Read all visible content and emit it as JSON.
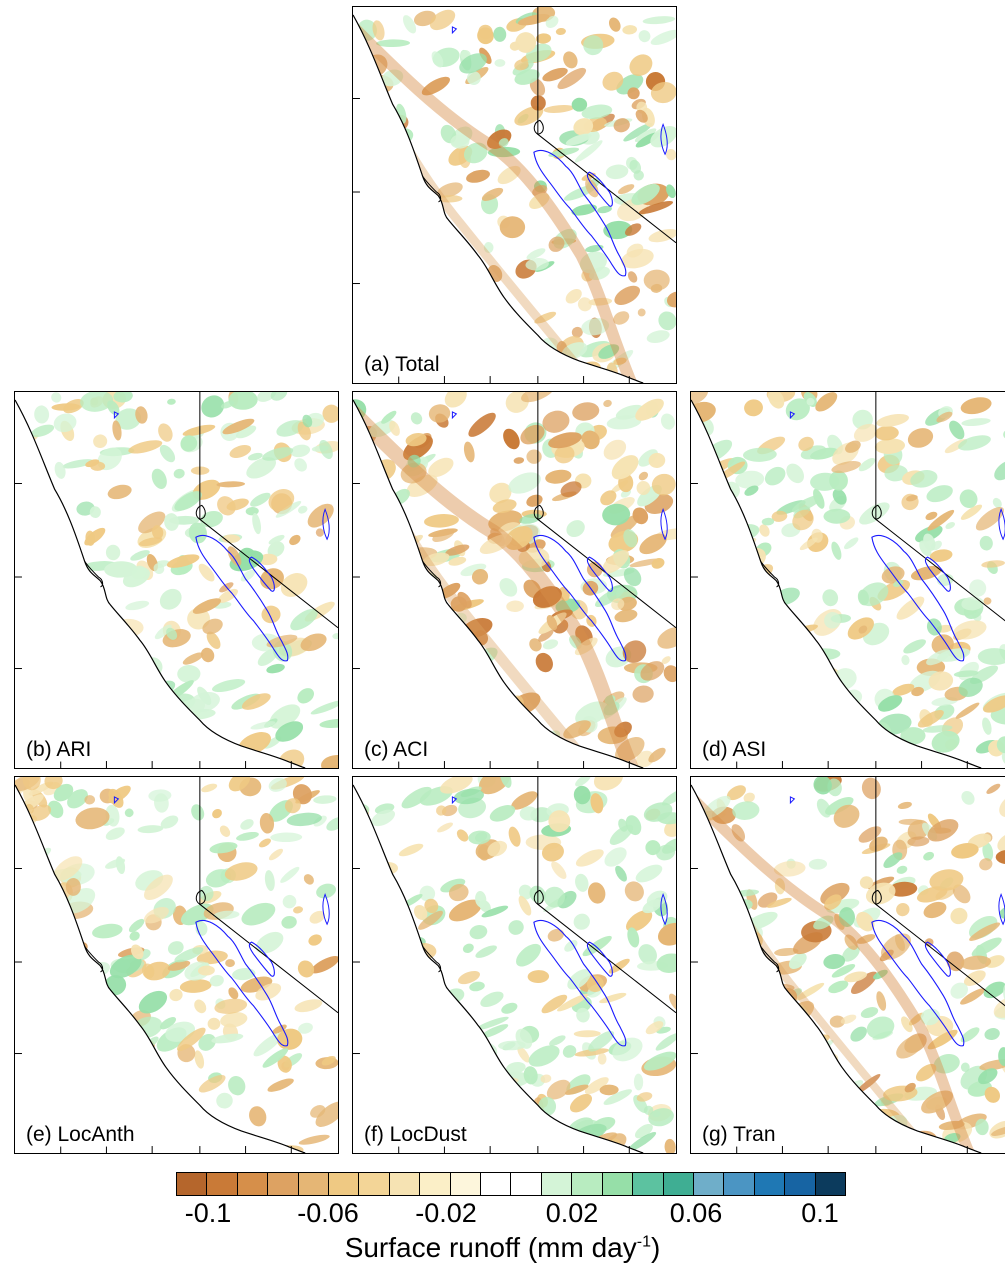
{
  "figure": {
    "panels": [
      {
        "id": "a",
        "label": "(a) Total"
      },
      {
        "id": "b",
        "label": "(b) ARI"
      },
      {
        "id": "c",
        "label": "(c) ACI"
      },
      {
        "id": "d",
        "label": "(d) ASI"
      },
      {
        "id": "e",
        "label": "(e) LocAnth"
      },
      {
        "id": "f",
        "label": "(f) LocDust"
      },
      {
        "id": "g",
        "label": "(g) Tran"
      }
    ],
    "colorbar": {
      "colors": [
        "#b5662c",
        "#c97a37",
        "#d68f4a",
        "#dda262",
        "#e5b675",
        "#efc983",
        "#f3d597",
        "#f6e3b3",
        "#fbefc7",
        "#fdf6dc",
        "#ffffff",
        "#ffffff",
        "#d4f4d7",
        "#b8ecc0",
        "#96dfa8",
        "#5cc2a0",
        "#3fae93",
        "#6faec9",
        "#4b95c3",
        "#1f78b4",
        "#1764a3",
        "#0c3b5d"
      ],
      "tick_labels": [
        "-0.1",
        "-0.06",
        "-0.02",
        "0.02",
        "0.06",
        "0.1"
      ],
      "title_main": "Surface runoff (mm day",
      "title_sup": "-1",
      "title_close": ")"
    },
    "legend_colors": {
      "coastline": "#000000",
      "contour": "#1a1aff"
    }
  }
}
